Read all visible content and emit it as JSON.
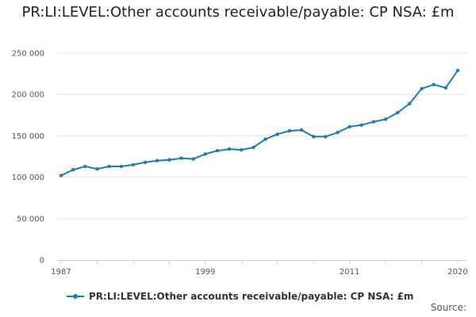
{
  "chart_data": {
    "type": "line",
    "title": "PR:LI:LEVEL:Other accounts receivable/payable: CP NSA: £m",
    "xlabel": "",
    "ylabel": "",
    "ylim": [
      0,
      250000
    ],
    "xlim": [
      1987,
      2020
    ],
    "y_ticks": [
      0,
      50000,
      100000,
      150000,
      200000,
      250000
    ],
    "y_tick_labels": [
      "0",
      "50 000",
      "100 000",
      "150 000",
      "200 000",
      "250 000"
    ],
    "x_tick_labels": [
      "1987",
      "1999",
      "2011",
      "2020"
    ],
    "x_tick_years": [
      1987,
      1999,
      2011,
      2020
    ],
    "grid": "horizontal",
    "legend_position": "bottom-left",
    "series": [
      {
        "name": "PR:LI:LEVEL:Other accounts receivable/payable: CP NSA: £m",
        "color": "#1f7bb6",
        "x": [
          1987,
          1988,
          1989,
          1990,
          1991,
          1992,
          1993,
          1994,
          1995,
          1996,
          1997,
          1998,
          1999,
          2000,
          2001,
          2002,
          2003,
          2004,
          2005,
          2006,
          2007,
          2008,
          2009,
          2010,
          2011,
          2012,
          2013,
          2014,
          2015,
          2016,
          2017,
          2018,
          2019,
          2020
        ],
        "values": [
          102000,
          109000,
          113000,
          110000,
          113000,
          113000,
          115000,
          118000,
          120000,
          121000,
          123000,
          122000,
          128000,
          132000,
          134000,
          133000,
          136000,
          146000,
          152000,
          156000,
          157000,
          149000,
          149000,
          154000,
          161000,
          163000,
          167000,
          170000,
          178000,
          189000,
          207000,
          212000,
          208000,
          229000
        ]
      }
    ]
  },
  "legend": {
    "label": "PR:LI:LEVEL:Other accounts receivable/payable: CP NSA: £m"
  },
  "footer": {
    "source_label": "Source:"
  }
}
